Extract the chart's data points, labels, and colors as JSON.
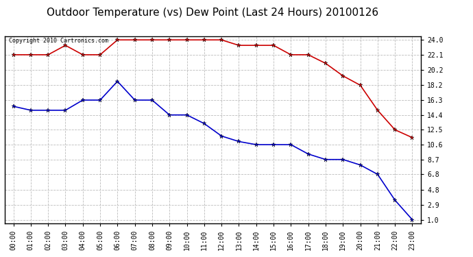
{
  "title": "Outdoor Temperature (vs) Dew Point (Last 24 Hours) 20100126",
  "copyright_text": "Copyright 2010 Cartronics.com",
  "x_labels": [
    "00:00",
    "01:00",
    "02:00",
    "03:00",
    "04:00",
    "05:00",
    "06:00",
    "07:00",
    "08:00",
    "09:00",
    "10:00",
    "11:00",
    "12:00",
    "13:00",
    "14:00",
    "15:00",
    "16:00",
    "17:00",
    "18:00",
    "19:00",
    "20:00",
    "21:00",
    "22:00",
    "23:00"
  ],
  "temp_data": [
    22.1,
    22.1,
    22.1,
    23.3,
    22.1,
    22.1,
    24.0,
    24.0,
    24.0,
    24.0,
    24.0,
    24.0,
    24.0,
    23.3,
    23.3,
    23.3,
    22.1,
    22.1,
    21.0,
    19.4,
    18.2,
    15.0,
    12.5,
    11.5
  ],
  "dew_data": [
    15.5,
    15.0,
    15.0,
    15.0,
    16.3,
    16.3,
    18.7,
    16.3,
    16.3,
    14.4,
    14.4,
    13.3,
    11.7,
    11.0,
    10.6,
    10.6,
    10.6,
    9.4,
    8.7,
    8.7,
    8.0,
    6.8,
    3.5,
    1.0
  ],
  "temp_color": "#cc0000",
  "dew_color": "#0000cc",
  "bg_color": "#ffffff",
  "plot_bg_color": "#ffffff",
  "grid_color": "#bbbbbb",
  "ylim_min": 1.0,
  "ylim_max": 24.0,
  "yticks": [
    1.0,
    2.9,
    4.8,
    6.8,
    8.7,
    10.6,
    12.5,
    14.4,
    16.3,
    18.2,
    20.2,
    22.1,
    24.0
  ],
  "title_fontsize": 11,
  "copyright_fontsize": 6,
  "tick_fontsize": 7,
  "marker": "*",
  "linewidth": 1.2,
  "markersize": 5
}
